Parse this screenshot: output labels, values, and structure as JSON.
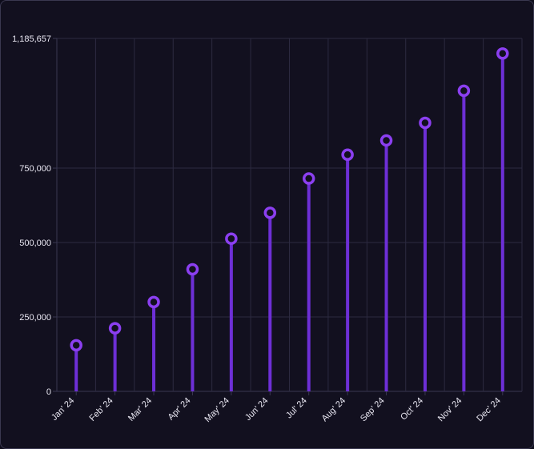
{
  "chart_data": {
    "type": "lollipop",
    "categories": [
      "Jan' 24",
      "Feb' 24",
      "Mar' 24",
      "Apr' 24",
      "May' 24",
      "Jun' 24",
      "Jul' 24",
      "Aug' 24",
      "Sep' 24",
      "Oct' 24",
      "Nov' 24",
      "Dec' 24"
    ],
    "values": [
      155000,
      212000,
      300000,
      410000,
      513000,
      600000,
      715000,
      795000,
      843000,
      902000,
      1010000,
      1135000
    ],
    "title": "",
    "xlabel": "",
    "ylabel": "",
    "ylim": [
      0,
      1185657
    ],
    "y_ticks": [
      0,
      250000,
      500000,
      750000,
      1185657
    ],
    "y_tick_labels": [
      "0",
      "250,000",
      "500,000",
      "750,000",
      "1,185,657"
    ],
    "grid": true,
    "colors": {
      "background": "#12101f",
      "grid": "#2c2a40",
      "axis": "#3a3852",
      "stem": "#6d2fd6",
      "marker": "#8b3ff0",
      "marker_fill": "#12101f",
      "text": "#e9e7f2"
    }
  }
}
